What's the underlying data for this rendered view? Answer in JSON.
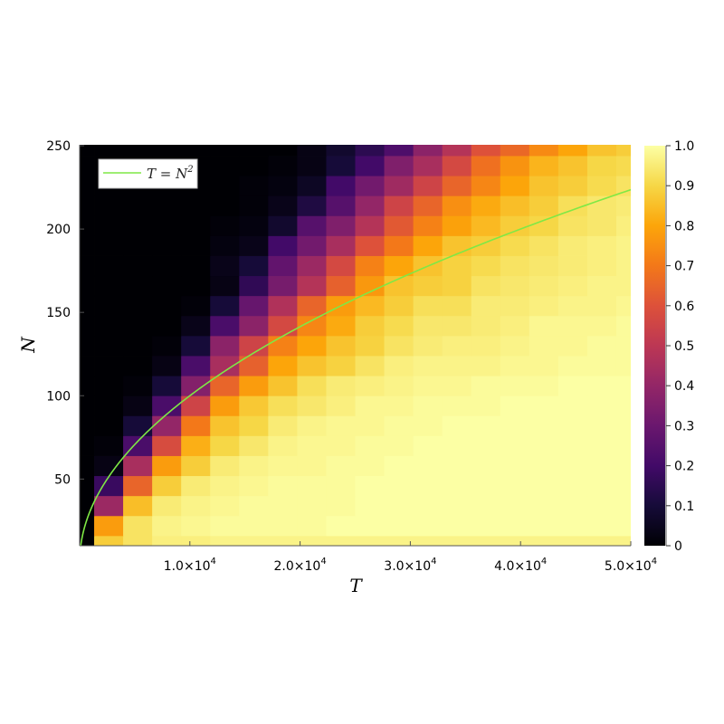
{
  "chart_data": {
    "type": "heatmap",
    "colormap": "inferno",
    "xlabel": "T",
    "ylabel": "N",
    "xlim": [
      0,
      50000
    ],
    "ylim": [
      10,
      250
    ],
    "clim": [
      0,
      1
    ],
    "grid": false,
    "x": [
      0,
      2632,
      5263,
      7895,
      10526,
      13158,
      15789,
      18421,
      21053,
      23684,
      26316,
      28947,
      31579,
      34211,
      36842,
      39474,
      42105,
      44737,
      47368,
      50000
    ],
    "y": [
      10,
      22,
      34,
      46,
      58,
      70,
      82,
      94,
      106,
      118,
      130,
      142,
      154,
      166,
      178,
      190,
      202,
      214,
      226,
      238,
      250
    ],
    "z": [
      [
        0,
        0.88,
        0.93,
        0.96,
        0.96,
        0.97,
        0.97,
        0.97,
        0.97,
        0.97,
        0.97,
        0.97,
        0.97,
        0.97,
        0.97,
        0.97,
        0.97,
        0.97,
        0.97,
        0.97
      ],
      [
        0,
        0.78,
        0.93,
        0.97,
        0.98,
        0.99,
        0.99,
        0.99,
        0.99,
        1,
        1,
        1,
        1,
        1,
        1,
        1,
        1,
        1,
        1,
        1
      ],
      [
        0,
        0.42,
        0.85,
        0.95,
        0.97,
        0.98,
        0.99,
        0.99,
        0.99,
        0.99,
        1,
        1,
        1,
        1,
        1,
        1,
        1,
        1,
        1,
        1
      ],
      [
        0,
        0.18,
        0.65,
        0.88,
        0.95,
        0.97,
        0.98,
        0.99,
        0.99,
        0.99,
        1,
        1,
        1,
        1,
        1,
        1,
        1,
        1,
        1,
        1
      ],
      [
        0,
        0.03,
        0.45,
        0.78,
        0.88,
        0.95,
        0.97,
        0.98,
        0.98,
        0.99,
        0.99,
        1,
        1,
        1,
        1,
        1,
        1,
        1,
        1,
        1
      ],
      [
        0,
        0.01,
        0.22,
        0.58,
        0.82,
        0.9,
        0.94,
        0.97,
        0.98,
        0.98,
        0.99,
        0.99,
        1,
        1,
        1,
        1,
        1,
        1,
        1,
        1
      ],
      [
        0,
        0,
        0.1,
        0.4,
        0.7,
        0.86,
        0.9,
        0.95,
        0.97,
        0.98,
        0.98,
        0.99,
        0.99,
        1,
        1,
        1,
        1,
        1,
        1,
        1
      ],
      [
        0,
        0,
        0.03,
        0.22,
        0.55,
        0.78,
        0.87,
        0.92,
        0.94,
        0.96,
        0.98,
        0.98,
        0.99,
        0.99,
        0.99,
        1,
        1,
        1,
        1,
        1
      ],
      [
        0,
        0,
        0.01,
        0.1,
        0.36,
        0.65,
        0.78,
        0.86,
        0.92,
        0.95,
        0.96,
        0.97,
        0.98,
        0.98,
        0.99,
        0.99,
        0.99,
        1,
        1,
        1
      ],
      [
        0,
        0,
        0,
        0.03,
        0.22,
        0.45,
        0.64,
        0.8,
        0.86,
        0.89,
        0.93,
        0.96,
        0.97,
        0.97,
        0.97,
        0.98,
        0.98,
        0.99,
        0.99,
        0.99
      ],
      [
        0,
        0,
        0,
        0.01,
        0.1,
        0.38,
        0.55,
        0.72,
        0.8,
        0.86,
        0.89,
        0.93,
        0.95,
        0.96,
        0.96,
        0.97,
        0.98,
        0.98,
        0.99,
        0.99
      ],
      [
        0,
        0,
        0,
        0,
        0.04,
        0.22,
        0.38,
        0.57,
        0.73,
        0.81,
        0.88,
        0.91,
        0.94,
        0.94,
        0.95,
        0.96,
        0.98,
        0.98,
        0.98,
        0.99
      ],
      [
        0,
        0,
        0,
        0,
        0.01,
        0.1,
        0.29,
        0.47,
        0.65,
        0.78,
        0.84,
        0.88,
        0.92,
        0.92,
        0.95,
        0.95,
        0.96,
        0.97,
        0.97,
        0.98
      ],
      [
        0,
        0,
        0,
        0,
        0,
        0.03,
        0.16,
        0.33,
        0.48,
        0.64,
        0.77,
        0.86,
        0.88,
        0.89,
        0.93,
        0.94,
        0.95,
        0.96,
        0.97,
        0.97
      ],
      [
        0,
        0,
        0,
        0,
        0,
        0.04,
        0.1,
        0.28,
        0.42,
        0.57,
        0.72,
        0.8,
        0.86,
        0.89,
        0.91,
        0.93,
        0.94,
        0.95,
        0.96,
        0.97
      ],
      [
        0,
        0,
        0,
        0,
        0,
        0.02,
        0.04,
        0.2,
        0.32,
        0.45,
        0.6,
        0.7,
        0.8,
        0.86,
        0.88,
        0.91,
        0.93,
        0.95,
        0.96,
        0.97
      ],
      [
        0,
        0,
        0,
        0,
        0,
        0.01,
        0.02,
        0.08,
        0.25,
        0.35,
        0.48,
        0.62,
        0.72,
        0.79,
        0.84,
        0.88,
        0.9,
        0.93,
        0.94,
        0.96
      ],
      [
        0,
        0,
        0,
        0,
        0,
        0,
        0.01,
        0.04,
        0.12,
        0.25,
        0.4,
        0.55,
        0.65,
        0.75,
        0.81,
        0.85,
        0.88,
        0.92,
        0.94,
        0.95
      ],
      [
        0,
        0,
        0,
        0,
        0,
        0,
        0.01,
        0.02,
        0.06,
        0.2,
        0.32,
        0.43,
        0.55,
        0.65,
        0.73,
        0.8,
        0.86,
        0.88,
        0.91,
        0.93
      ],
      [
        0,
        0,
        0,
        0,
        0,
        0,
        0,
        0.01,
        0.03,
        0.1,
        0.2,
        0.35,
        0.45,
        0.57,
        0.68,
        0.76,
        0.83,
        0.86,
        0.9,
        0.91
      ],
      [
        0,
        0,
        0,
        0,
        0,
        0,
        0,
        0,
        0.03,
        0.08,
        0.15,
        0.23,
        0.38,
        0.48,
        0.6,
        0.66,
        0.74,
        0.8,
        0.86,
        0.88
      ]
    ],
    "x_ticks": [
      {
        "value": 10000,
        "base": "1.0×10",
        "exp": "4"
      },
      {
        "value": 20000,
        "base": "2.0×10",
        "exp": "4"
      },
      {
        "value": 30000,
        "base": "3.0×10",
        "exp": "4"
      },
      {
        "value": 40000,
        "base": "4.0×10",
        "exp": "4"
      },
      {
        "value": 50000,
        "base": "5.0×10",
        "exp": "4"
      }
    ],
    "y_ticks": [
      {
        "value": 50,
        "label": "50"
      },
      {
        "value": 100,
        "label": "100"
      },
      {
        "value": 150,
        "label": "150"
      },
      {
        "value": 200,
        "label": "200"
      },
      {
        "value": 250,
        "label": "250"
      }
    ],
    "colorbar_ticks": [
      {
        "value": 0,
        "label": "0"
      },
      {
        "value": 0.1,
        "label": "0.1"
      },
      {
        "value": 0.2,
        "label": "0.2"
      },
      {
        "value": 0.3,
        "label": "0.3"
      },
      {
        "value": 0.4,
        "label": "0.4"
      },
      {
        "value": 0.5,
        "label": "0.5"
      },
      {
        "value": 0.6,
        "label": "0.6"
      },
      {
        "value": 0.7,
        "label": "0.7"
      },
      {
        "value": 0.8,
        "label": "0.8"
      },
      {
        "value": 0.9,
        "label": "0.9"
      },
      {
        "value": 1.0,
        "label": "1.0"
      }
    ],
    "overlay_curve": {
      "legend_text": "T = N",
      "legend_sup": "2",
      "color": "#7fe845"
    },
    "legend_placement": "top-left"
  }
}
